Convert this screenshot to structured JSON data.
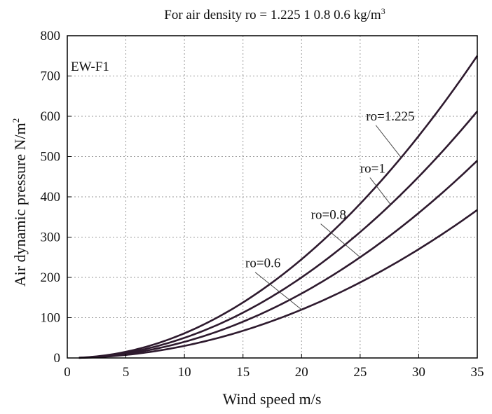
{
  "chart_data": {
    "type": "line",
    "title": "For air density ro = 1.225  1  0.8  0.6 kg/m",
    "title_superscript": "3",
    "xlabel": "Wind speed m/s",
    "ylabel": "Air dynamic pressure N/m",
    "ylabel_superscript": "2",
    "xlim": [
      0,
      35
    ],
    "ylim": [
      0,
      800
    ],
    "xticks": [
      0,
      5,
      10,
      15,
      20,
      25,
      30,
      35
    ],
    "yticks": [
      0,
      100,
      200,
      300,
      400,
      500,
      600,
      700,
      800
    ],
    "grid": true,
    "panel_label": "EW-F1",
    "colors": {
      "line": "#2e1a2e",
      "grid": "#9a9a9a",
      "axis": "#000000"
    },
    "x": [
      1,
      5,
      10,
      15,
      20,
      25,
      30,
      35
    ],
    "series": [
      {
        "name": "ro=1.225",
        "values": [
          0.6,
          15.3,
          61.3,
          137.8,
          245.0,
          382.8,
          551.3,
          750.3
        ]
      },
      {
        "name": "ro=1",
        "values": [
          0.5,
          12.5,
          50.0,
          112.5,
          200.0,
          312.5,
          450.0,
          612.5
        ]
      },
      {
        "name": "ro=0.8",
        "values": [
          0.4,
          10.0,
          40.0,
          90.0,
          160.0,
          250.0,
          360.0,
          490.0
        ]
      },
      {
        "name": "ro=0.6",
        "values": [
          0.3,
          7.5,
          30.0,
          67.5,
          120.0,
          187.5,
          270.0,
          367.5
        ]
      }
    ],
    "annotations": [
      {
        "text": "ro=1.225",
        "series": "ro=1.225",
        "point": [
          28.5,
          497.5
        ],
        "label_at": [
          25.5,
          590
        ]
      },
      {
        "text": "ro=1",
        "series": "ro=1",
        "point": [
          27.6,
          381.0
        ],
        "label_at": [
          25.0,
          460
        ]
      },
      {
        "text": "ro=0.8",
        "series": "ro=0.8",
        "point": [
          25.0,
          250.0
        ],
        "label_at": [
          20.8,
          345
        ]
      },
      {
        "text": "ro=0.6",
        "series": "ro=0.6",
        "point": [
          20.0,
          120.0
        ],
        "label_at": [
          15.2,
          225
        ]
      }
    ]
  }
}
